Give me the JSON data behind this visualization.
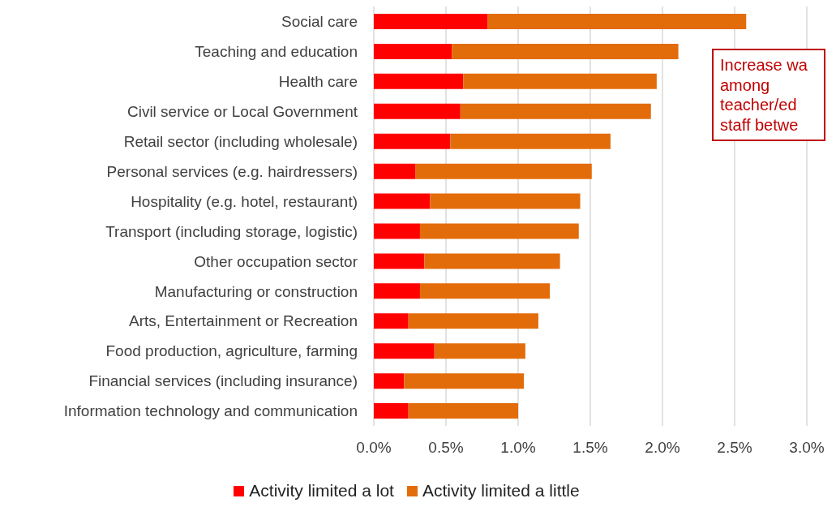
{
  "chart_data": {
    "type": "bar",
    "orientation": "horizontal",
    "stacked": true,
    "categories": [
      "Social care",
      "Teaching and education",
      "Health care",
      "Civil service or Local Government",
      "Retail sector (including wholesale)",
      "Personal services (e.g. hairdressers)",
      "Hospitality (e.g. hotel, restaurant)",
      "Transport (including storage, logistic)",
      "Other occupation sector",
      "Manufacturing or construction",
      "Arts, Entertainment or Recreation",
      "Food production, agriculture, farming",
      "Financial services (including insurance)",
      "Information technology and communication"
    ],
    "series": [
      {
        "name": "Activity limited a lot",
        "color": "#ff0000",
        "values": [
          0.79,
          0.54,
          0.62,
          0.6,
          0.53,
          0.29,
          0.39,
          0.32,
          0.35,
          0.32,
          0.24,
          0.42,
          0.21,
          0.24
        ]
      },
      {
        "name": "Activity limited a little",
        "color": "#e36c0a",
        "values": [
          1.79,
          1.57,
          1.34,
          1.32,
          1.11,
          1.22,
          1.04,
          1.1,
          0.94,
          0.9,
          0.9,
          0.63,
          0.83,
          0.76
        ]
      }
    ],
    "xlim": [
      0,
      3.0
    ],
    "xticks": [
      {
        "value": 0,
        "label": "0.0%"
      },
      {
        "value": 0.5,
        "label": "0.5%"
      },
      {
        "value": 1.0,
        "label": "1.0%"
      },
      {
        "value": 1.5,
        "label": "1.5%"
      },
      {
        "value": 2.0,
        "label": "2.0%"
      },
      {
        "value": 2.5,
        "label": "2.5%"
      },
      {
        "value": 3.0,
        "label": "3.0%"
      }
    ],
    "grid": "x",
    "legend": "bottom",
    "annotations": [
      "Increase wa\namong\nteacher/ed\nstaff betwe"
    ]
  }
}
